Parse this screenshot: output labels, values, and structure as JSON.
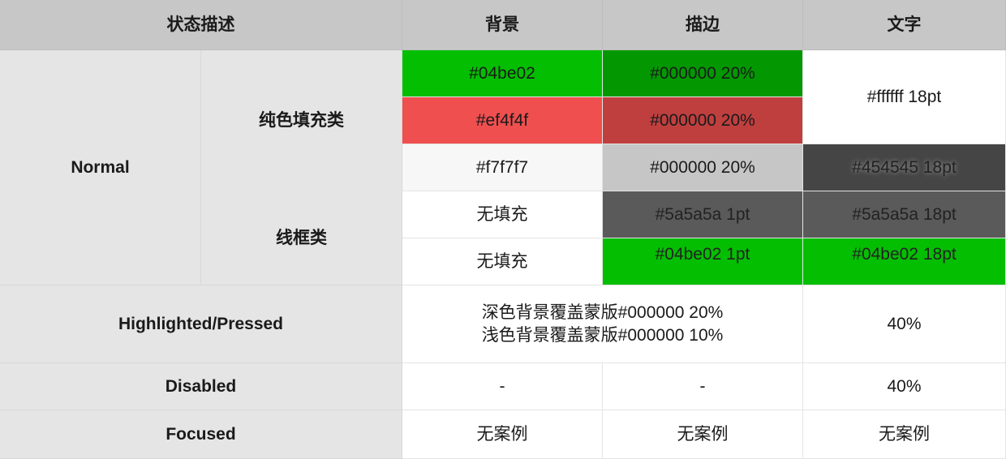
{
  "header": {
    "state": "状态描述",
    "background": "背景",
    "stroke": "描边",
    "text": "文字"
  },
  "normal": {
    "label": "Normal",
    "solid": {
      "label": "纯色填充类",
      "rows": [
        {
          "bg": "#04be02",
          "stroke": "#000000 20%"
        },
        {
          "bg": "#ef4f4f",
          "stroke": "#000000 20%"
        },
        {
          "bg": "#f7f7f7",
          "stroke": "#000000 20%",
          "text": "#454545 18pt"
        }
      ],
      "text_shared": "#ffffff  18pt"
    },
    "outline": {
      "label": "线框类",
      "rows": [
        {
          "bg": "无填充",
          "stroke": "#5a5a5a 1pt",
          "text": "#5a5a5a 18pt"
        },
        {
          "bg": "无填充",
          "stroke": "#04be02 1pt",
          "text": "#04be02 18pt"
        }
      ]
    }
  },
  "highlighted": {
    "label": "Highlighted/Pressed",
    "bg_line1": "深色背景覆盖蒙版#000000 20%",
    "bg_line2": "浅色背景覆盖蒙版#000000 10%",
    "text": "40%"
  },
  "disabled": {
    "label": "Disabled",
    "bg": "-",
    "stroke": "-",
    "text": "40%"
  },
  "focused": {
    "label": "Focused",
    "bg": "无案例",
    "stroke": "无案例",
    "text": "无案例"
  },
  "colors": {
    "green": "#04be02",
    "green_stroke": "#039802",
    "red": "#ef4f4f",
    "red_stroke": "#bf3f3f",
    "light": "#f7f7f7",
    "light_stroke": "#c6c6c6",
    "dark_text": "#454545",
    "gray": "#5a5a5a",
    "header": "#c6c7c6",
    "label": "#e5e5e5"
  }
}
